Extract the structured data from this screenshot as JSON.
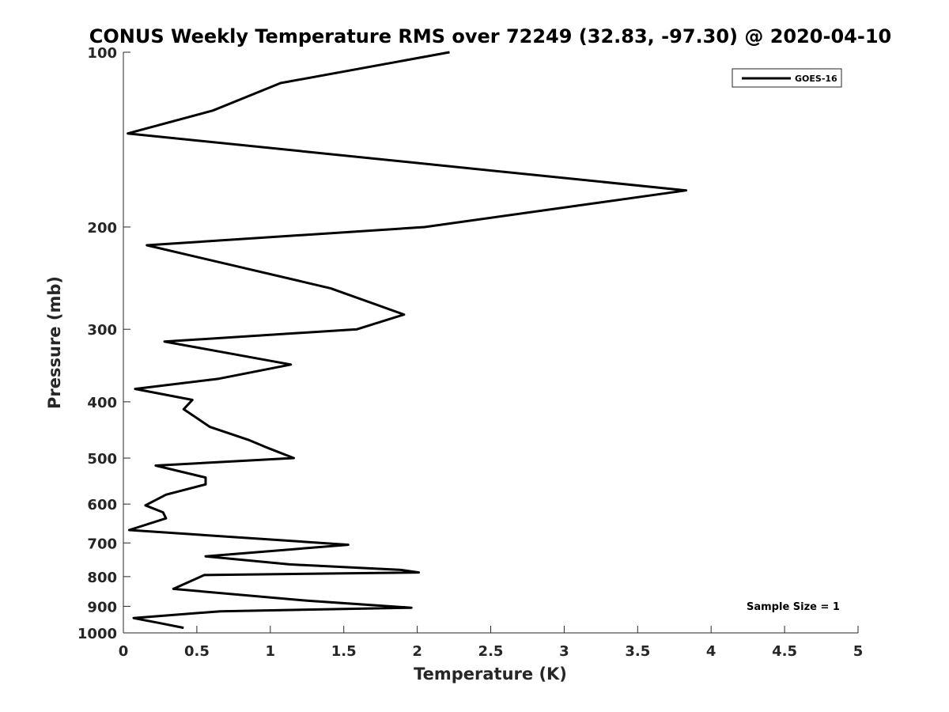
{
  "chart_data": {
    "type": "line",
    "title": "CONUS Weekly Temperature RMS over 72249 (32.83, -97.30) @ 2020-04-10",
    "xlabel": "Temperature (K)",
    "ylabel": "Pressure (mb)",
    "xlim": [
      0,
      5
    ],
    "ylim": [
      1000,
      100
    ],
    "yscale": "log",
    "y_reversed": true,
    "xticks": [
      0,
      0.5,
      1,
      1.5,
      2,
      2.5,
      3,
      3.5,
      4,
      4.5,
      5
    ],
    "xtick_labels": [
      "0",
      "0.5",
      "1",
      "1.5",
      "2",
      "2.5",
      "3",
      "3.5",
      "4",
      "4.5",
      "5"
    ],
    "yticks": [
      100,
      200,
      300,
      400,
      500,
      600,
      700,
      800,
      900,
      1000
    ],
    "ytick_labels": [
      "100",
      "200",
      "300",
      "400",
      "500",
      "600",
      "700",
      "800",
      "900",
      "1000"
    ],
    "grid": false,
    "legend_position": "top-right",
    "annotation": "Sample Size = 1",
    "series": [
      {
        "name": "GOES-16",
        "color": "#000000",
        "x": [
          2.22,
          1.07,
          0.61,
          0.03,
          3.83,
          2.05,
          0.16,
          1.41,
          1.91,
          1.59,
          0.28,
          1.14,
          0.65,
          0.08,
          0.47,
          0.41,
          0.59,
          0.85,
          0.99,
          1.16,
          0.22,
          0.56,
          0.56,
          0.29,
          0.15,
          0.27,
          0.29,
          0.04,
          1.53,
          0.56,
          1.13,
          1.89,
          2.01,
          0.55,
          0.34,
          1.25,
          1.96,
          0.66,
          0.07,
          0.25,
          0.41
        ],
        "y": [
          100,
          113,
          126,
          138,
          173,
          200,
          215,
          255,
          283,
          300,
          315,
          345,
          365,
          380,
          397,
          412,
          442,
          465,
          481,
          500,
          515,
          540,
          555,
          578,
          603,
          620,
          635,
          665,
          705,
          738,
          762,
          779,
          787,
          795,
          840,
          880,
          905,
          918,
          943,
          962,
          980
        ]
      }
    ]
  }
}
